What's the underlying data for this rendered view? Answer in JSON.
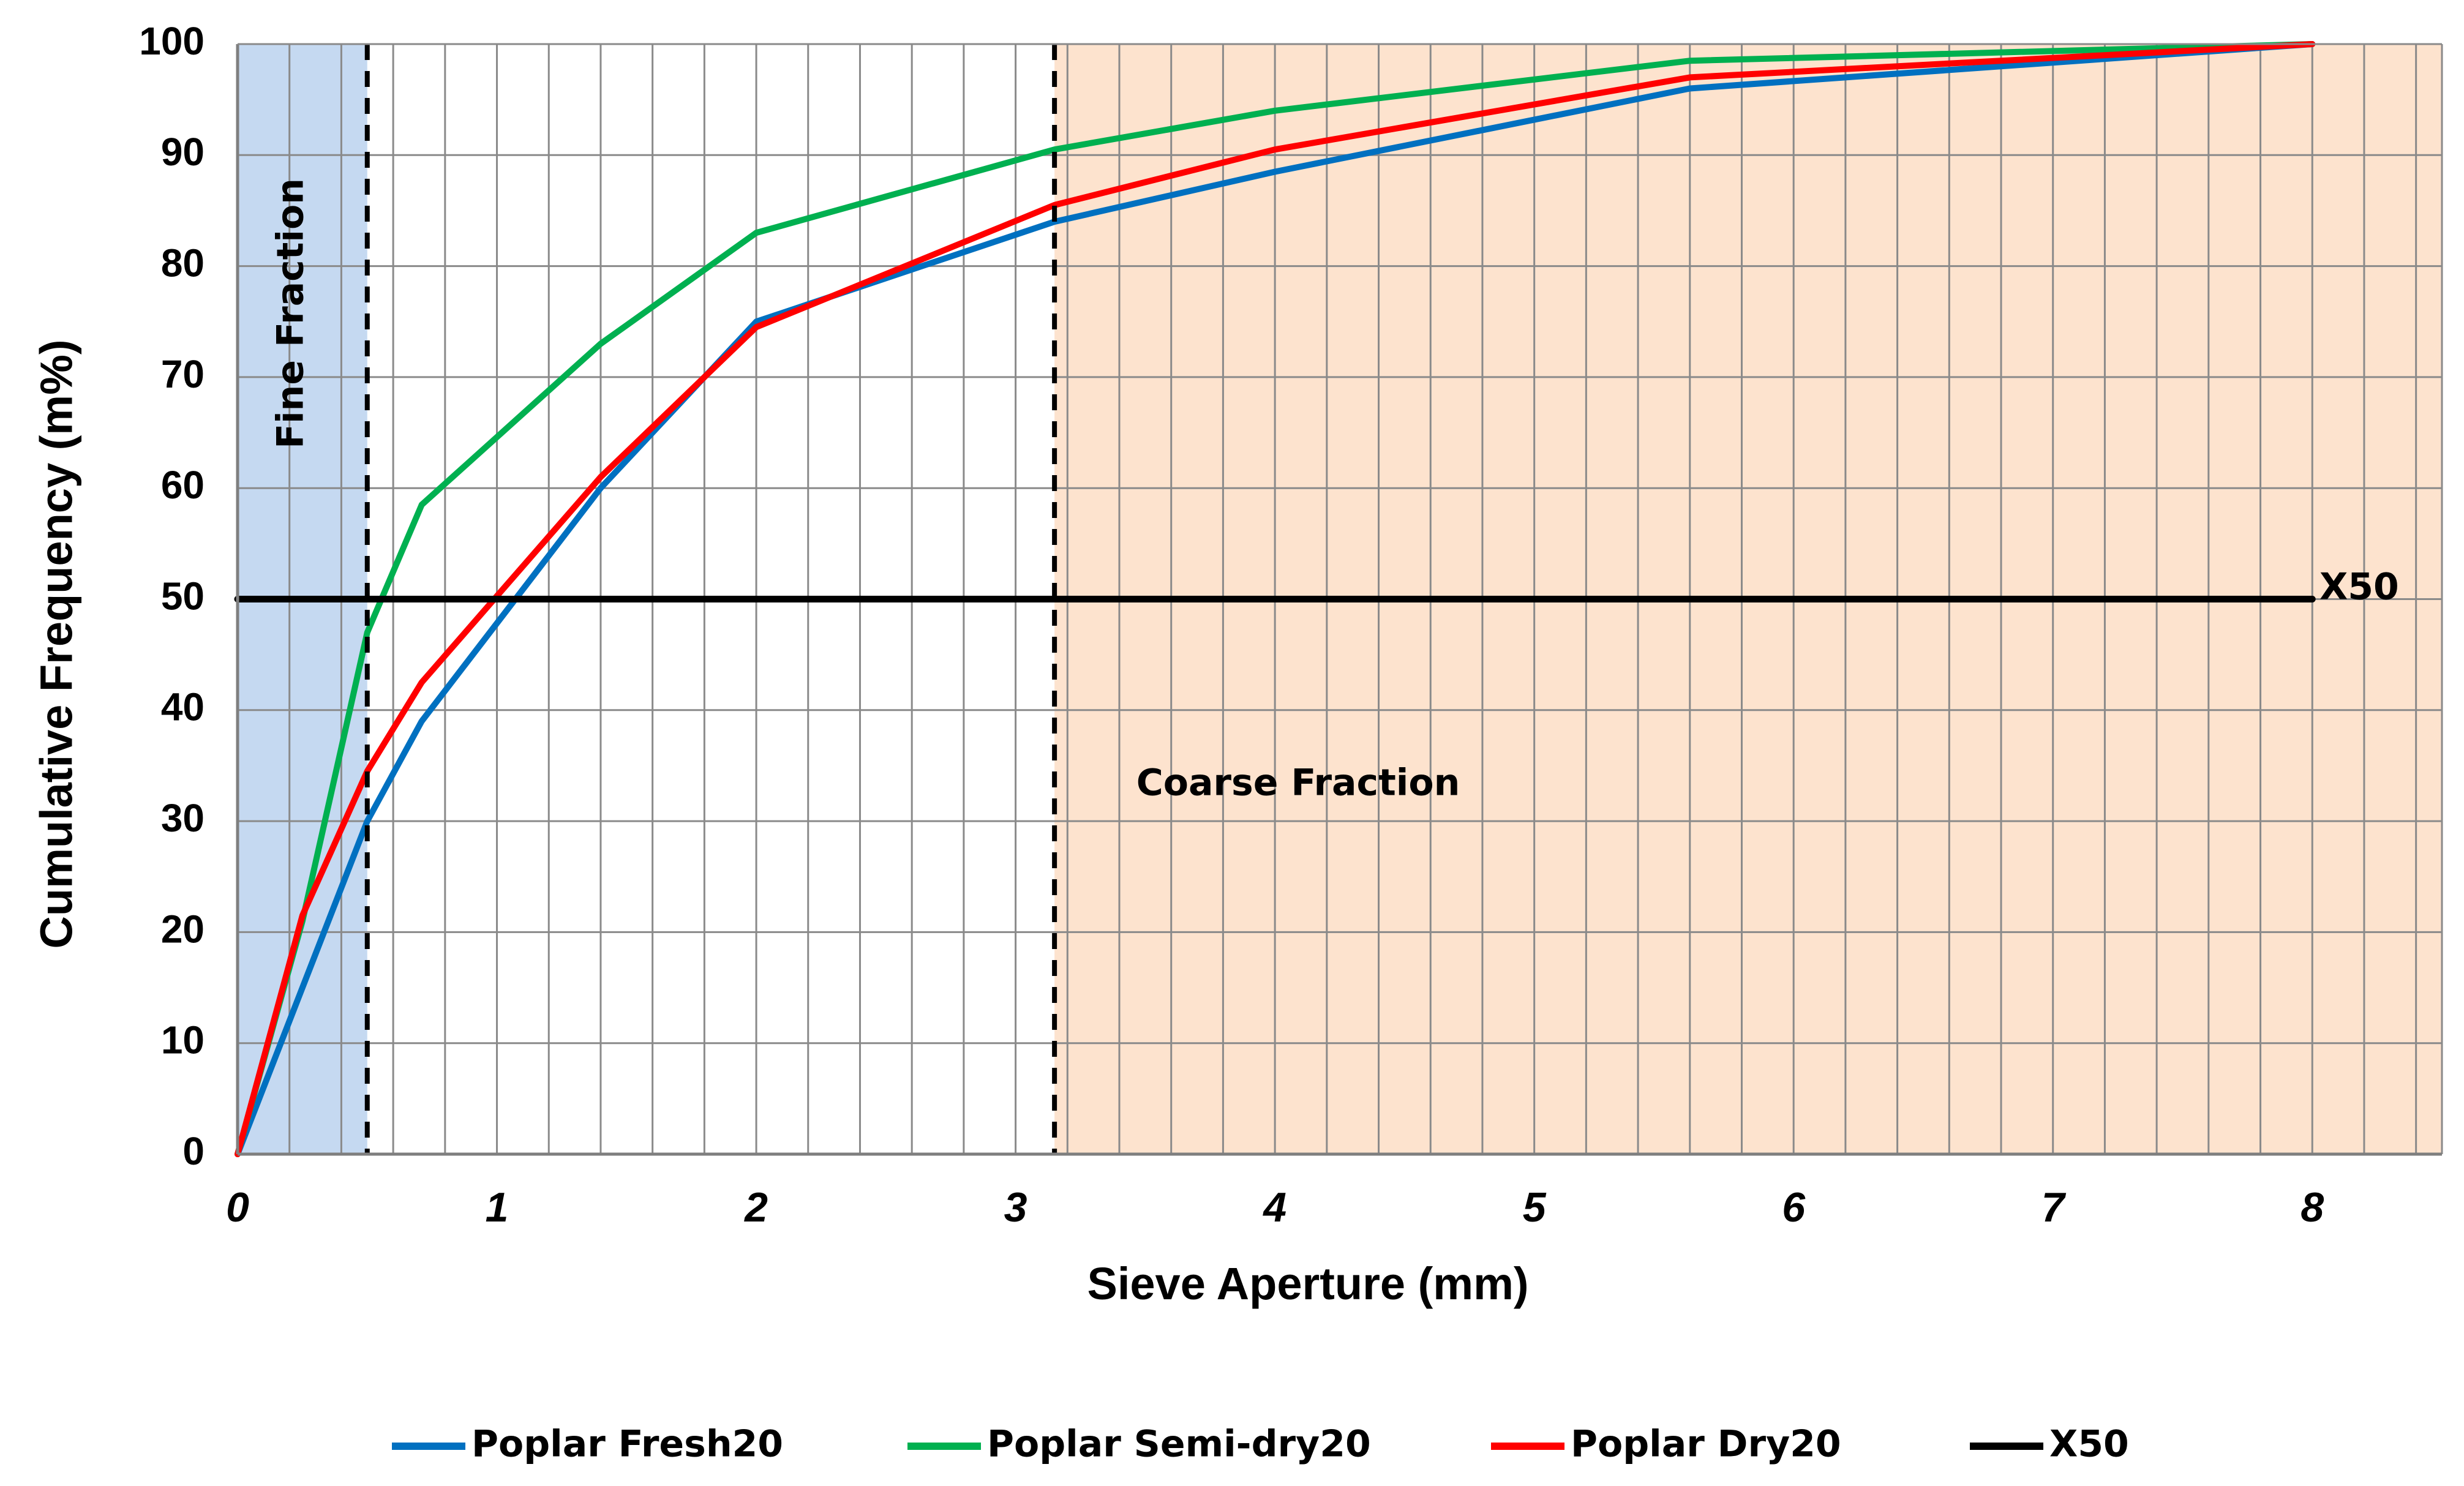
{
  "chart_data": {
    "type": "line",
    "title": "",
    "xlabel": "Sieve Aperture  (mm)",
    "ylabel": "Cumulative Frequency (m%)",
    "xlim": [
      0,
      8.5
    ],
    "ylim": [
      0,
      100
    ],
    "x_ticks": [
      "0",
      "1",
      "2",
      "3",
      "4",
      "5",
      "6",
      "7",
      "8"
    ],
    "y_ticks": [
      "0",
      "10",
      "20",
      "30",
      "40",
      "50",
      "60",
      "70",
      "80",
      "90",
      "100"
    ],
    "grid": true,
    "legend_position": "bottom",
    "series": [
      {
        "name": "Poplar Fresh20",
        "color": "#0070C0",
        "x": [
          0,
          0.5,
          0.71,
          1.4,
          2,
          3.15,
          4,
          5.6,
          8
        ],
        "y": [
          0,
          30,
          39,
          60,
          75,
          84,
          88.5,
          96,
          100
        ]
      },
      {
        "name": "Poplar Semi-dry20",
        "color": "#00B050",
        "x": [
          0,
          0.25,
          0.5,
          0.71,
          1.4,
          2,
          3.15,
          4,
          5.6,
          8
        ],
        "y": [
          0,
          21,
          47,
          58.5,
          73,
          83,
          90.5,
          94,
          98.5,
          100
        ]
      },
      {
        "name": "Poplar Dry20",
        "color": "#FF0000",
        "x": [
          0,
          0.25,
          0.5,
          0.71,
          1.4,
          2,
          3.15,
          4,
          5.6,
          8
        ],
        "y": [
          0,
          21.5,
          34.5,
          42.5,
          61,
          74.5,
          85.5,
          90.5,
          97,
          100
        ]
      },
      {
        "name": "X50",
        "color": "#000000",
        "x": [
          0,
          8
        ],
        "y": [
          50,
          50
        ],
        "label": "X50"
      }
    ],
    "regions": [
      {
        "name": "fine",
        "label": "Fine Fraction",
        "x_range": [
          0,
          0.5
        ],
        "color": "#C5D9F1"
      },
      {
        "name": "coarse",
        "label": "Coarse Fraction",
        "x_range": [
          3.15,
          8.5
        ],
        "color": "#FDE3CE"
      }
    ],
    "boundaries": [
      0.5,
      3.15
    ]
  }
}
